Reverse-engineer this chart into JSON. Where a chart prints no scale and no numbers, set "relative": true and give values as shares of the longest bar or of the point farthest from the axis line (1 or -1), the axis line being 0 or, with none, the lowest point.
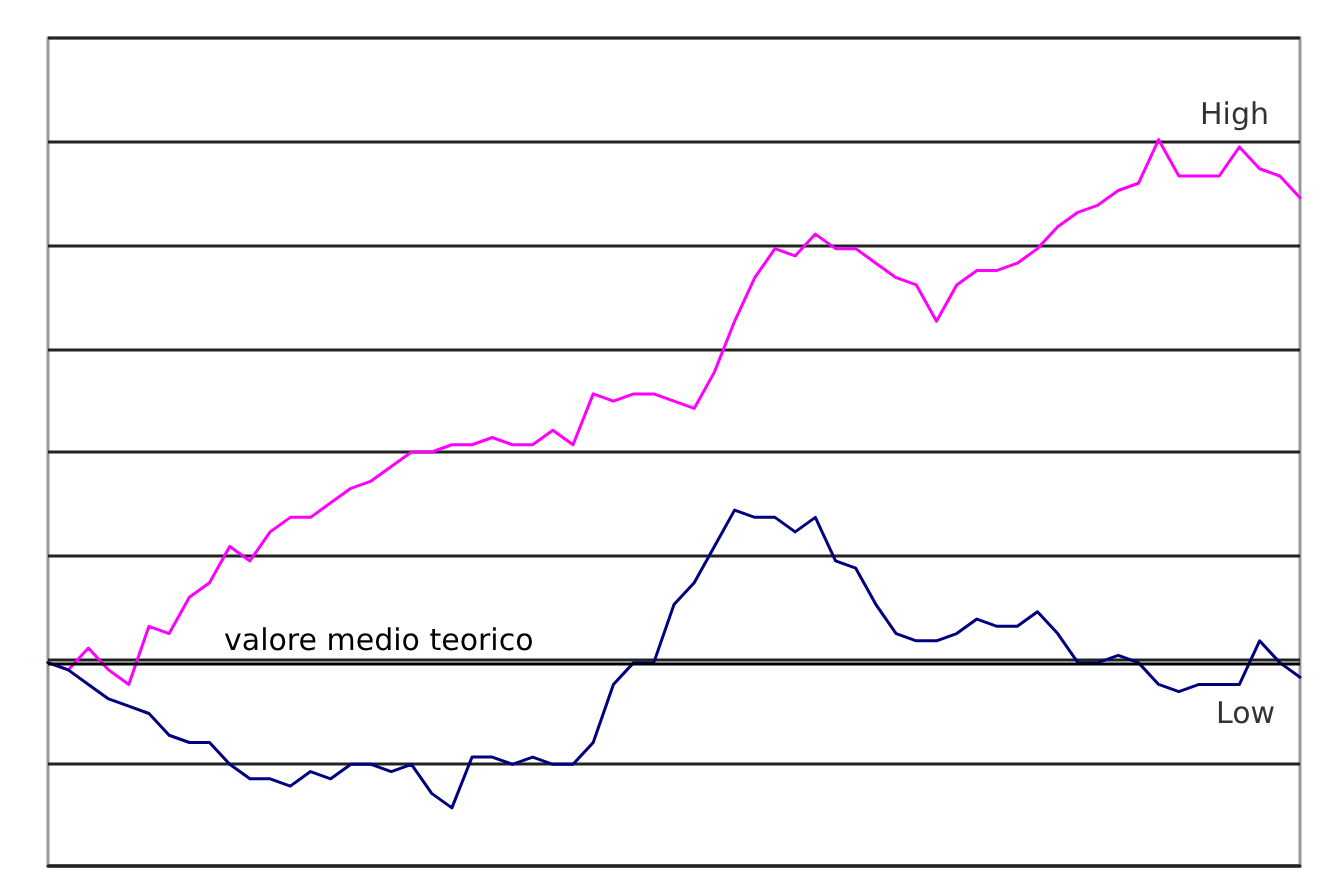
{
  "chart_data": {
    "type": "line",
    "relative": true,
    "grid": "y",
    "legend": false,
    "marker": "none",
    "line_style": "solid",
    "categories": [
      null,
      null,
      null,
      null,
      null,
      null,
      null,
      null,
      null,
      null,
      null,
      null,
      null,
      null,
      null,
      null,
      null,
      null,
      null,
      null,
      null,
      null,
      null,
      null,
      null,
      null,
      null,
      null,
      null,
      null,
      null,
      null,
      null,
      null,
      null,
      null,
      null,
      null,
      null,
      null,
      null,
      null,
      null,
      null,
      null,
      null,
      null,
      null,
      null,
      null,
      null,
      null,
      null,
      null,
      null,
      null,
      null,
      null,
      null,
      null,
      null,
      null,
      null
    ],
    "series": [
      {
        "name": "High",
        "color": "#ff00ff",
        "values": [
          0.28,
          0.27,
          0.3,
          0.27,
          0.25,
          0.33,
          0.32,
          0.37,
          0.39,
          0.44,
          0.42,
          0.46,
          0.48,
          0.48,
          0.5,
          0.52,
          0.53,
          0.55,
          0.57,
          0.57,
          0.58,
          0.58,
          0.59,
          0.58,
          0.58,
          0.6,
          0.58,
          0.65,
          0.64,
          0.65,
          0.65,
          0.64,
          0.63,
          0.68,
          0.75,
          0.81,
          0.85,
          0.84,
          0.87,
          0.85,
          0.85,
          0.83,
          0.81,
          0.8,
          0.75,
          0.8,
          0.82,
          0.82,
          0.83,
          0.85,
          0.88,
          0.9,
          0.91,
          0.93,
          0.94,
          1,
          0.95,
          0.95,
          0.95,
          0.99,
          0.96,
          0.95,
          0.92
        ]
      },
      {
        "name": "Low",
        "color": "#000080",
        "values": [
          0.28,
          0.27,
          0.25,
          0.23,
          0.22,
          0.21,
          0.18,
          0.17,
          0.17,
          0.14,
          0.12,
          0.12,
          0.11,
          0.13,
          0.12,
          0.14,
          0.14,
          0.13,
          0.14,
          0.1,
          0.08,
          0.15,
          0.15,
          0.14,
          0.15,
          0.14,
          0.14,
          0.17,
          0.25,
          0.28,
          0.28,
          0.36,
          0.39,
          0.44,
          0.49,
          0.48,
          0.48,
          0.46,
          0.48,
          0.42,
          0.41,
          0.36,
          0.32,
          0.31,
          0.31,
          0.32,
          0.34,
          0.33,
          0.33,
          0.35,
          0.32,
          0.28,
          0.28,
          0.29,
          0.28,
          0.25,
          0.24,
          0.25,
          0.25,
          0.25,
          0.31,
          0.28,
          0.26
        ]
      }
    ],
    "ref_lines": [
      {
        "axis": "y",
        "value": 0.28,
        "label": "valore medio teorico",
        "color": "#000000",
        "line_style": "solid"
      }
    ]
  }
}
